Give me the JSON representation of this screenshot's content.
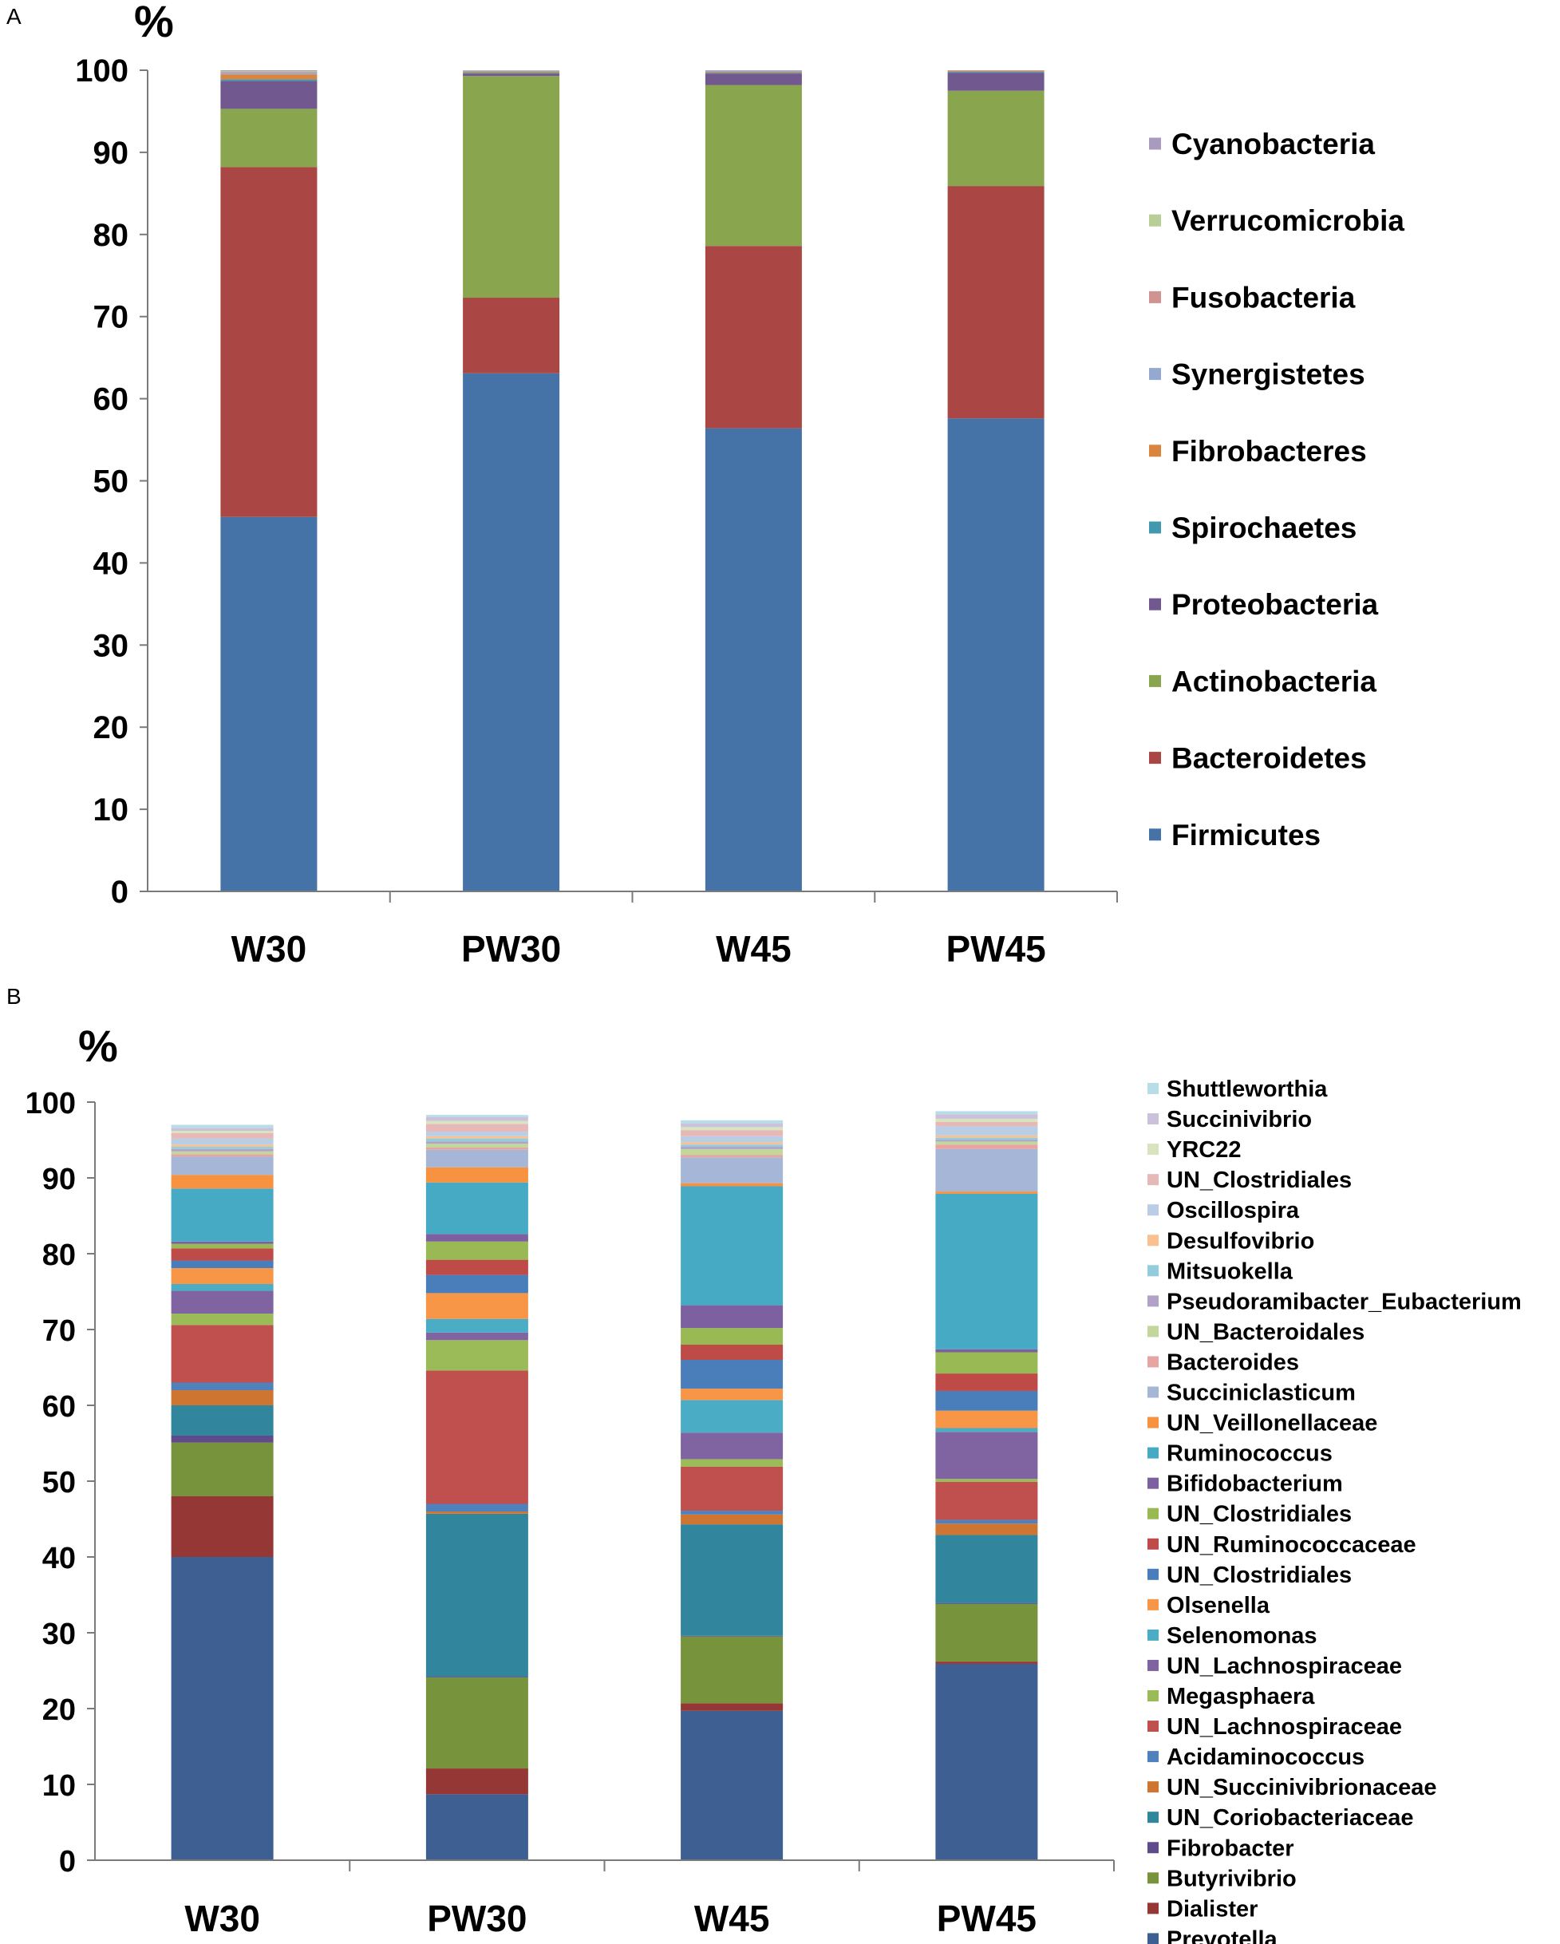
{
  "chart_data": [
    {
      "panel": "A",
      "type": "bar",
      "stacked": true,
      "ylabel": "%",
      "ylim": [
        0,
        100
      ],
      "yticks": [
        0,
        10,
        20,
        30,
        40,
        50,
        60,
        70,
        80,
        90,
        100
      ],
      "categories": [
        "W30",
        "PW30",
        "W45",
        "PW45"
      ],
      "legend_position": "right",
      "series": [
        {
          "name": "Firmicutes",
          "color": "#4572A7",
          "values": [
            45.6,
            63.1,
            56.4,
            57.6
          ]
        },
        {
          "name": "Bacteroidetes",
          "color": "#AA4643",
          "values": [
            42.6,
            9.2,
            22.2,
            28.3
          ]
        },
        {
          "name": "Actinobacteria",
          "color": "#89A54E",
          "values": [
            7.1,
            27.0,
            19.6,
            11.6
          ]
        },
        {
          "name": "Proteobacteria",
          "color": "#71588F",
          "values": [
            3.4,
            0.3,
            1.4,
            2.2
          ]
        },
        {
          "name": "Spirochaetes",
          "color": "#4198AF",
          "values": [
            0.2,
            0.1,
            0.1,
            0.1
          ]
        },
        {
          "name": "Fibrobacteres",
          "color": "#DB843D",
          "values": [
            0.6,
            0.1,
            0.1,
            0.1
          ]
        },
        {
          "name": "Synergistetes",
          "color": "#93A9CF",
          "values": [
            0.2,
            0.1,
            0.1,
            0.05
          ]
        },
        {
          "name": "Fusobacteria",
          "color": "#D19392",
          "values": [
            0.1,
            0.05,
            0.05,
            0.02
          ]
        },
        {
          "name": "Verrucomicrobia",
          "color": "#B9CD96",
          "values": [
            0.1,
            0.05,
            0.03,
            0.02
          ]
        },
        {
          "name": "Cyanobacteria",
          "color": "#A99BBD",
          "values": [
            0.1,
            0.0,
            0.02,
            0.01
          ]
        }
      ]
    },
    {
      "panel": "B",
      "type": "bar",
      "stacked": true,
      "ylabel": "%",
      "ylim": [
        0,
        100
      ],
      "yticks": [
        0,
        10,
        20,
        30,
        40,
        50,
        60,
        70,
        80,
        90,
        100
      ],
      "categories": [
        "W30",
        "PW30",
        "W45",
        "PW45"
      ],
      "legend_position": "right",
      "series": [
        {
          "name": "Prevotella",
          "color": "#3D5F92",
          "values": [
            40.0,
            8.7,
            19.7,
            25.9
          ]
        },
        {
          "name": "Dialister",
          "color": "#953735",
          "values": [
            8.0,
            3.4,
            1.0,
            0.3
          ]
        },
        {
          "name": "Butyrivibrio",
          "color": "#77933C",
          "values": [
            7.1,
            12.0,
            8.8,
            7.6
          ]
        },
        {
          "name": "Fibrobacter",
          "color": "#5F4B8B",
          "values": [
            0.9,
            0.1,
            0.1,
            0.1
          ]
        },
        {
          "name": "UN_Coriobacteriaceae",
          "color": "#31859C",
          "values": [
            4.0,
            21.5,
            14.7,
            9.0
          ]
        },
        {
          "name": "UN_Succinivibrionaceae",
          "color": "#CE7532",
          "values": [
            2.0,
            0.3,
            1.3,
            1.5
          ]
        },
        {
          "name": "Acidaminococcus",
          "color": "#4F81BD",
          "values": [
            1.0,
            1.0,
            0.5,
            0.5
          ]
        },
        {
          "name": "UN_Lachnospiraceae",
          "color": "#C0504D",
          "values": [
            7.6,
            17.6,
            5.8,
            5.0
          ]
        },
        {
          "name": "Megasphaera",
          "color": "#9BBB59",
          "values": [
            1.5,
            4.0,
            1.0,
            0.4
          ]
        },
        {
          "name": "UN_Lachnospiraceae",
          "color": "#8064A2",
          "values": [
            3.0,
            1.0,
            3.5,
            6.2
          ]
        },
        {
          "name": "Selenomonas",
          "color": "#4BACC6",
          "values": [
            0.9,
            1.8,
            4.3,
            0.5
          ]
        },
        {
          "name": "Olsenella",
          "color": "#F79646",
          "values": [
            2.1,
            3.4,
            1.5,
            2.3
          ]
        },
        {
          "name": "UN_Clostridiales",
          "color": "#4A7EBB",
          "values": [
            1.0,
            2.4,
            3.8,
            2.6
          ]
        },
        {
          "name": "UN_Ruminococcaceae",
          "color": "#BE4B48",
          "values": [
            1.6,
            2.0,
            2.0,
            2.3
          ]
        },
        {
          "name": "UN_Clostridiales",
          "color": "#98B954",
          "values": [
            0.6,
            2.4,
            2.2,
            2.8
          ]
        },
        {
          "name": "Bifidobacterium",
          "color": "#7D60A0",
          "values": [
            0.3,
            1.0,
            3.0,
            0.4
          ]
        },
        {
          "name": "Ruminococcus",
          "color": "#46AAC5",
          "values": [
            7.0,
            6.8,
            15.7,
            20.5
          ]
        },
        {
          "name": "UN_Veillonellaceae",
          "color": "#F69240",
          "values": [
            1.8,
            2.0,
            0.4,
            0.3
          ]
        },
        {
          "name": "Succiniclasticum",
          "color": "#A5B6D6",
          "values": [
            2.4,
            2.3,
            3.4,
            5.6
          ]
        },
        {
          "name": "Bacteroides",
          "color": "#E6A5A3",
          "values": [
            0.3,
            0.3,
            0.3,
            0.6
          ]
        },
        {
          "name": "UN_Bacteroidales",
          "color": "#C3D69B",
          "values": [
            0.4,
            0.5,
            0.8,
            0.4
          ]
        },
        {
          "name": "Pseudoramibacter_Eubacterium",
          "color": "#B3A2C7",
          "values": [
            0.3,
            0.3,
            0.3,
            0.2
          ]
        },
        {
          "name": "Mitsuokella",
          "color": "#93CDDD",
          "values": [
            0.3,
            0.4,
            0.3,
            0.3
          ]
        },
        {
          "name": "Desulfovibrio",
          "color": "#FAC08F",
          "values": [
            0.3,
            0.3,
            0.3,
            0.3
          ]
        },
        {
          "name": "Oscillospira",
          "color": "#B9CDE5",
          "values": [
            0.8,
            0.6,
            0.8,
            1.2
          ]
        },
        {
          "name": "UN_Clostridiales",
          "color": "#E6B9B8",
          "values": [
            0.7,
            1.0,
            0.8,
            0.6
          ]
        },
        {
          "name": "YRC22",
          "color": "#D7E4BD",
          "values": [
            0.3,
            0.4,
            0.4,
            0.4
          ]
        },
        {
          "name": "Succinivibrio",
          "color": "#CCC1DA",
          "values": [
            0.4,
            0.5,
            0.5,
            0.6
          ]
        },
        {
          "name": "Shuttleworthia",
          "color": "#B7DEE8",
          "values": [
            0.4,
            0.3,
            0.4,
            0.4
          ]
        }
      ]
    }
  ],
  "panel_a": {
    "letter": "A",
    "unit": "%"
  },
  "panel_b": {
    "letter": "B",
    "unit": "%"
  }
}
